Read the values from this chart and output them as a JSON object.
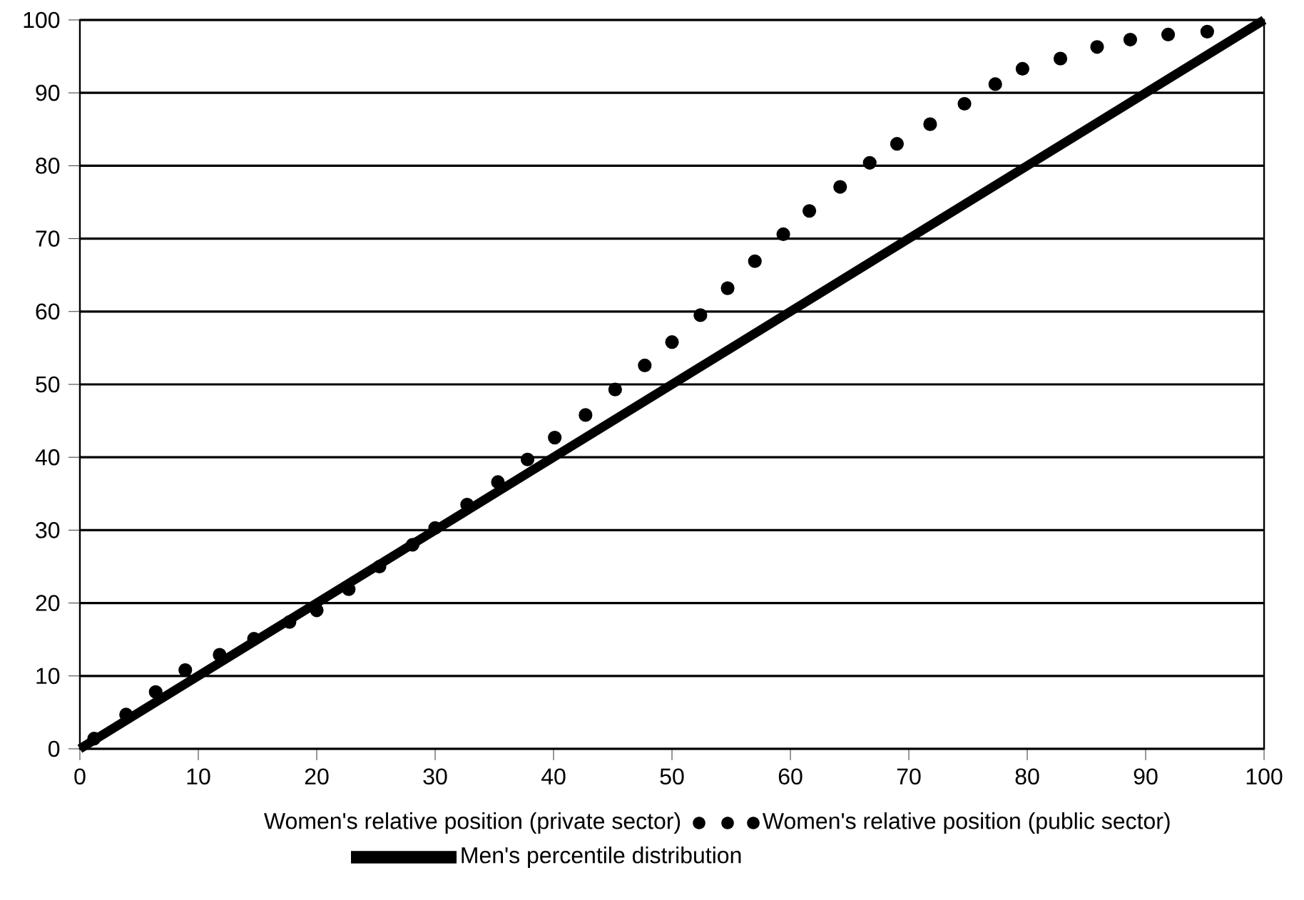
{
  "chart_data": {
    "type": "line",
    "xlim": [
      0,
      100
    ],
    "ylim": [
      0,
      100
    ],
    "xticks": [
      0,
      10,
      20,
      30,
      40,
      50,
      60,
      70,
      80,
      90,
      100
    ],
    "yticks": [
      0,
      10,
      20,
      30,
      40,
      50,
      60,
      70,
      80,
      90,
      100
    ],
    "grid": "y",
    "legend": "bottom",
    "annotations": [
      "Women's relative position (private sector)"
    ],
    "series": [
      {
        "name": "Women's relative position (public sector)",
        "type": "scatter",
        "color": "#000000",
        "marker": "circle",
        "x": [
          1.2,
          3.9,
          6.4,
          8.9,
          11.8,
          14.7,
          17.7,
          20.0,
          22.7,
          25.3,
          28.1,
          30.0,
          32.7,
          35.3,
          37.8,
          40.1,
          42.7,
          45.2,
          47.7,
          50.0,
          52.4,
          54.7,
          57.0,
          59.4,
          61.6,
          64.2,
          66.7,
          69.0,
          71.8,
          74.7,
          77.3,
          79.6,
          82.8,
          85.9,
          88.7,
          91.9,
          95.2
        ],
        "values": [
          1.4,
          4.7,
          7.8,
          10.8,
          12.9,
          15.1,
          17.4,
          19.0,
          21.9,
          25.0,
          28.0,
          30.3,
          33.5,
          36.6,
          39.7,
          42.7,
          45.8,
          49.3,
          52.6,
          55.8,
          59.5,
          63.2,
          66.9,
          70.6,
          73.8,
          77.1,
          80.4,
          83.0,
          85.7,
          88.5,
          91.2,
          93.3,
          94.7,
          96.3,
          97.3,
          98.0,
          98.4
        ]
      },
      {
        "name": "Men's percentile distribution",
        "color": "#000000",
        "marker": "none",
        "x": [
          0,
          100
        ],
        "values": [
          0,
          100
        ]
      }
    ]
  }
}
